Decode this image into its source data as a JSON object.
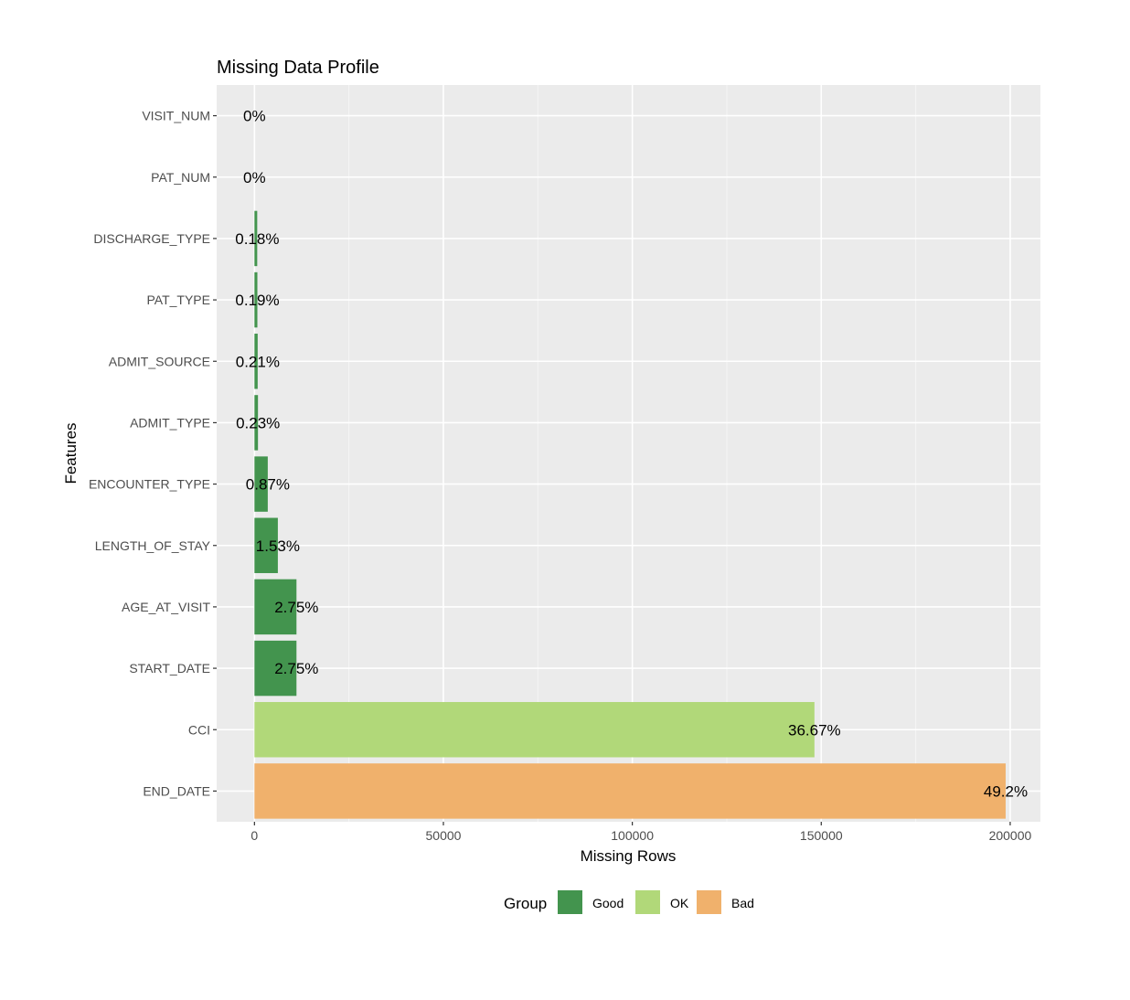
{
  "chart_data": {
    "type": "bar",
    "orientation": "horizontal",
    "title": "Missing Data Profile",
    "xlabel": "Missing Rows",
    "ylabel": "Features",
    "xlim": [
      -10000,
      208000
    ],
    "x_ticks": [
      0,
      50000,
      100000,
      150000,
      200000
    ],
    "grid": true,
    "legend_placement": "bottom",
    "legend_title": "Group",
    "groups": [
      {
        "name": "Good",
        "color": "#43944e"
      },
      {
        "name": "OK",
        "color": "#b1d879"
      },
      {
        "name": "Bad",
        "color": "#f0b16c"
      }
    ],
    "bars": [
      {
        "feature": "VISIT_NUM",
        "missing_rows": 0,
        "label": "0%",
        "group": "Good"
      },
      {
        "feature": "PAT_NUM",
        "missing_rows": 0,
        "label": "0%",
        "group": "Good"
      },
      {
        "feature": "DISCHARGE_TYPE",
        "missing_rows": 730,
        "label": "0.18%",
        "group": "Good"
      },
      {
        "feature": "PAT_TYPE",
        "missing_rows": 770,
        "label": "0.19%",
        "group": "Good"
      },
      {
        "feature": "ADMIT_SOURCE",
        "missing_rows": 850,
        "label": "0.21%",
        "group": "Good"
      },
      {
        "feature": "ADMIT_TYPE",
        "missing_rows": 930,
        "label": "0.23%",
        "group": "Good"
      },
      {
        "feature": "ENCOUNTER_TYPE",
        "missing_rows": 3520,
        "label": "0.87%",
        "group": "Good"
      },
      {
        "feature": "LENGTH_OF_STAY",
        "missing_rows": 6190,
        "label": "1.53%",
        "group": "Good"
      },
      {
        "feature": "AGE_AT_VISIT",
        "missing_rows": 11120,
        "label": "2.75%",
        "group": "Good"
      },
      {
        "feature": "START_DATE",
        "missing_rows": 11120,
        "label": "2.75%",
        "group": "Good"
      },
      {
        "feature": "CCI",
        "missing_rows": 148200,
        "label": "36.67%",
        "group": "OK"
      },
      {
        "feature": "END_DATE",
        "missing_rows": 198800,
        "label": "49.2%",
        "group": "Bad"
      }
    ]
  }
}
